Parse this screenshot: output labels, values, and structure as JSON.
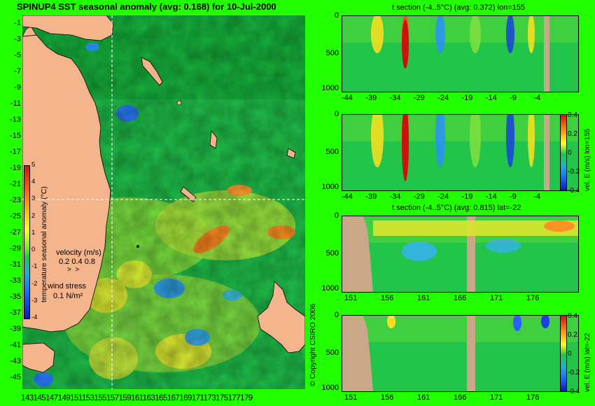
{
  "main_title": "SPINUP4 SST seasonal anomaly (avg: 0.168) for 10-Jul-2000",
  "map": {
    "lat_ticks": [
      "-1",
      "-3",
      "-5",
      "-7",
      "-9",
      "-11",
      "-13",
      "-15",
      "-17",
      "-19",
      "-21",
      "-23",
      "-25",
      "-27",
      "-29",
      "-31",
      "-33",
      "-35",
      "-37",
      "-39",
      "-41",
      "-43",
      "-45"
    ],
    "lon_ticks_text": "143145147149151153155157159161163165167169171173175177179",
    "colorbar": {
      "label": "temperature seasonal anomaly (°C)",
      "ticks": [
        "5",
        "4",
        "3",
        "2",
        "1",
        "0",
        "-1",
        "-2",
        "-3",
        "-4"
      ]
    },
    "velocity_legend": {
      "title": "velocity (m/s)",
      "scale": "0.2 0.4 0.8"
    },
    "wind_legend": {
      "title": "wind stress",
      "scale": "0.1 N/m²"
    }
  },
  "copyright": "© Copyright CSIRO 2006",
  "sections": [
    {
      "title": "t section (-4..5°C) (avg: 0.372) lon=155",
      "y_ticks": [
        "0",
        "500",
        "1000"
      ],
      "x_ticks": [
        "-44",
        "-39",
        "-34",
        "-29",
        "-24",
        "-19",
        "-14",
        "-9",
        "-4"
      ]
    },
    {
      "title": "",
      "y_ticks": [
        "0",
        "500",
        "1000"
      ],
      "x_ticks": [
        "-44",
        "-39",
        "-34",
        "-29",
        "-24",
        "-19",
        "-14",
        "-9",
        "-4"
      ],
      "colorbar_label": "vel. E (m/s) lon=155",
      "colorbar_ticks": [
        "0.4",
        "0.2",
        "0",
        "-0.2",
        "-0.4"
      ]
    },
    {
      "title": "t section (-4..5°C) (avg: 0.815) lat=-22",
      "y_ticks": [
        "0",
        "500",
        "1000"
      ],
      "x_ticks": [
        "151",
        "156",
        "161",
        "166",
        "171",
        "176"
      ]
    },
    {
      "title": "",
      "y_ticks": [
        "0",
        "500",
        "1000"
      ],
      "x_ticks": [
        "151",
        "156",
        "161",
        "166",
        "171",
        "176"
      ],
      "colorbar_label": "vel. E (m/s) lat=-22",
      "colorbar_ticks": [
        "0.4",
        "0.2",
        "0",
        "-0.2",
        "-0.4"
      ]
    }
  ],
  "colors": {
    "background": "#22ff00",
    "land": "#dfb08c",
    "ocean_base": "#22c44a",
    "warm": "#ffff00",
    "hot": "#ff2000",
    "cool": "#22aaff",
    "cold": "#0000cc",
    "bathy": "#c8a888"
  }
}
